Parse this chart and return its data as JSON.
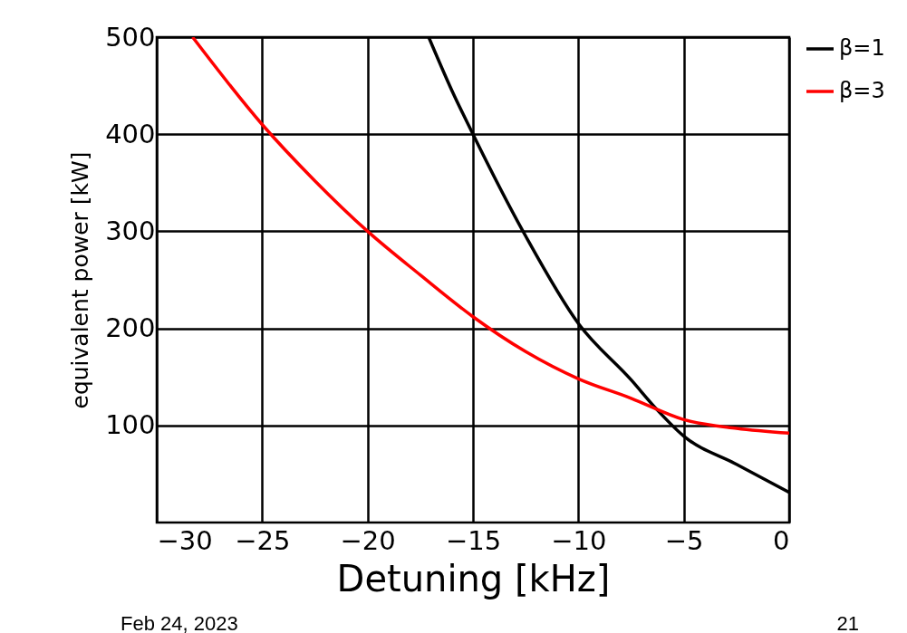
{
  "chart_data": {
    "type": "line",
    "xlabel": "Detuning [kHz]",
    "ylabel": "equivalent power [kW]",
    "xlim": [
      -30,
      0
    ],
    "ylim": [
      0,
      500
    ],
    "xticks": [
      -30,
      -25,
      -20,
      -15,
      -10,
      -5,
      0
    ],
    "yticks": [
      100,
      200,
      300,
      400,
      500
    ],
    "grid": true,
    "legend": "top right",
    "line_style": "solid",
    "series": [
      {
        "name": "β=1",
        "color": "#000000",
        "x": [
          -17.1,
          -16,
          -15,
          -12.5,
          -10,
          -7.5,
          -6.3,
          -5,
          -2.5,
          0
        ],
        "values": [
          500,
          445,
          400,
          295,
          205,
          147,
          117,
          89,
          60,
          31
        ]
      },
      {
        "name": "β=3",
        "color": "#ff0000",
        "x": [
          -28.3,
          -25,
          -22.5,
          -20,
          -17.5,
          -15,
          -12.5,
          -10,
          -7.5,
          -5,
          -2.5,
          0
        ],
        "values": [
          500,
          410,
          352,
          300,
          255,
          212,
          176,
          148,
          128,
          106,
          97,
          92
        ]
      }
    ],
    "annotations": [
      "Feb 24, 2023",
      "21"
    ]
  }
}
